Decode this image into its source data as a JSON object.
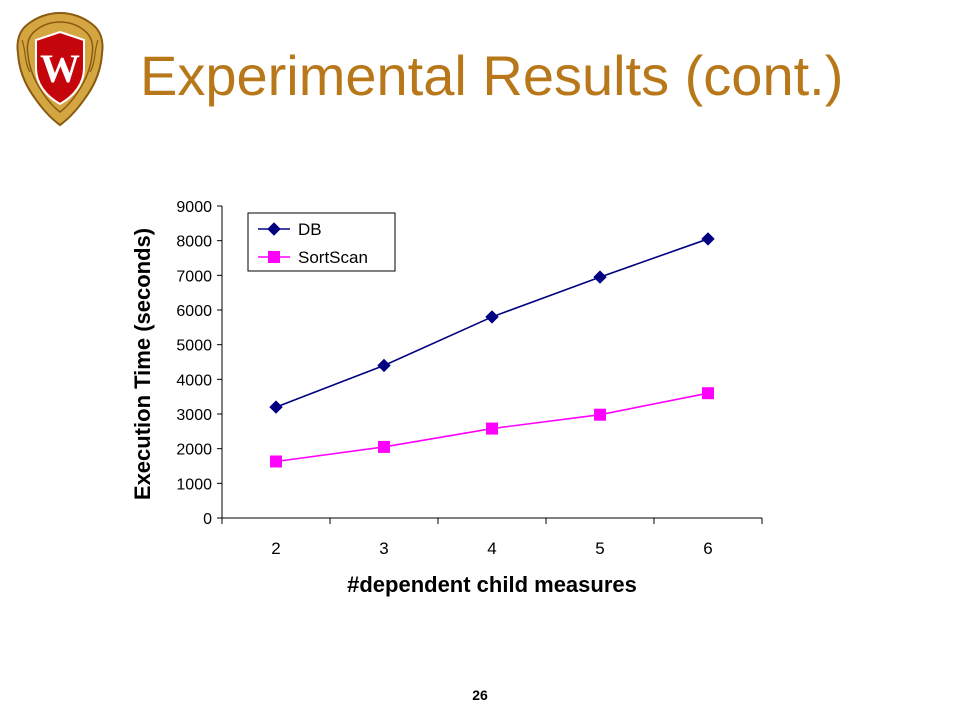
{
  "slide": {
    "title": "Experimental Results (cont.)",
    "page_number": "26",
    "title_color": "#b8781a"
  },
  "logo": {
    "icon": "university-crest-icon",
    "letter": "W",
    "colors": {
      "shield": "#c5050c",
      "frame": "#d4a642",
      "frame_dark": "#8a5a10"
    }
  },
  "chart_data": {
    "type": "line",
    "categories": [
      "2",
      "3",
      "4",
      "5",
      "6"
    ],
    "x": [
      2,
      3,
      4,
      5,
      6
    ],
    "series": [
      {
        "name": "DB",
        "values": [
          3200,
          4400,
          5800,
          6950,
          8050
        ],
        "color": "#000080",
        "marker": "diamond"
      },
      {
        "name": "SortScan",
        "values": [
          1630,
          2050,
          2580,
          2980,
          3600
        ],
        "color": "#ff00ff",
        "marker": "square"
      }
    ],
    "xlabel": "#dependent child measures",
    "ylabel": "Execution Time (seconds)",
    "ylim": [
      0,
      9000
    ],
    "yticks": [
      0,
      1000,
      2000,
      3000,
      4000,
      5000,
      6000,
      7000,
      8000,
      9000
    ],
    "grid": false,
    "legend": "top-left"
  }
}
